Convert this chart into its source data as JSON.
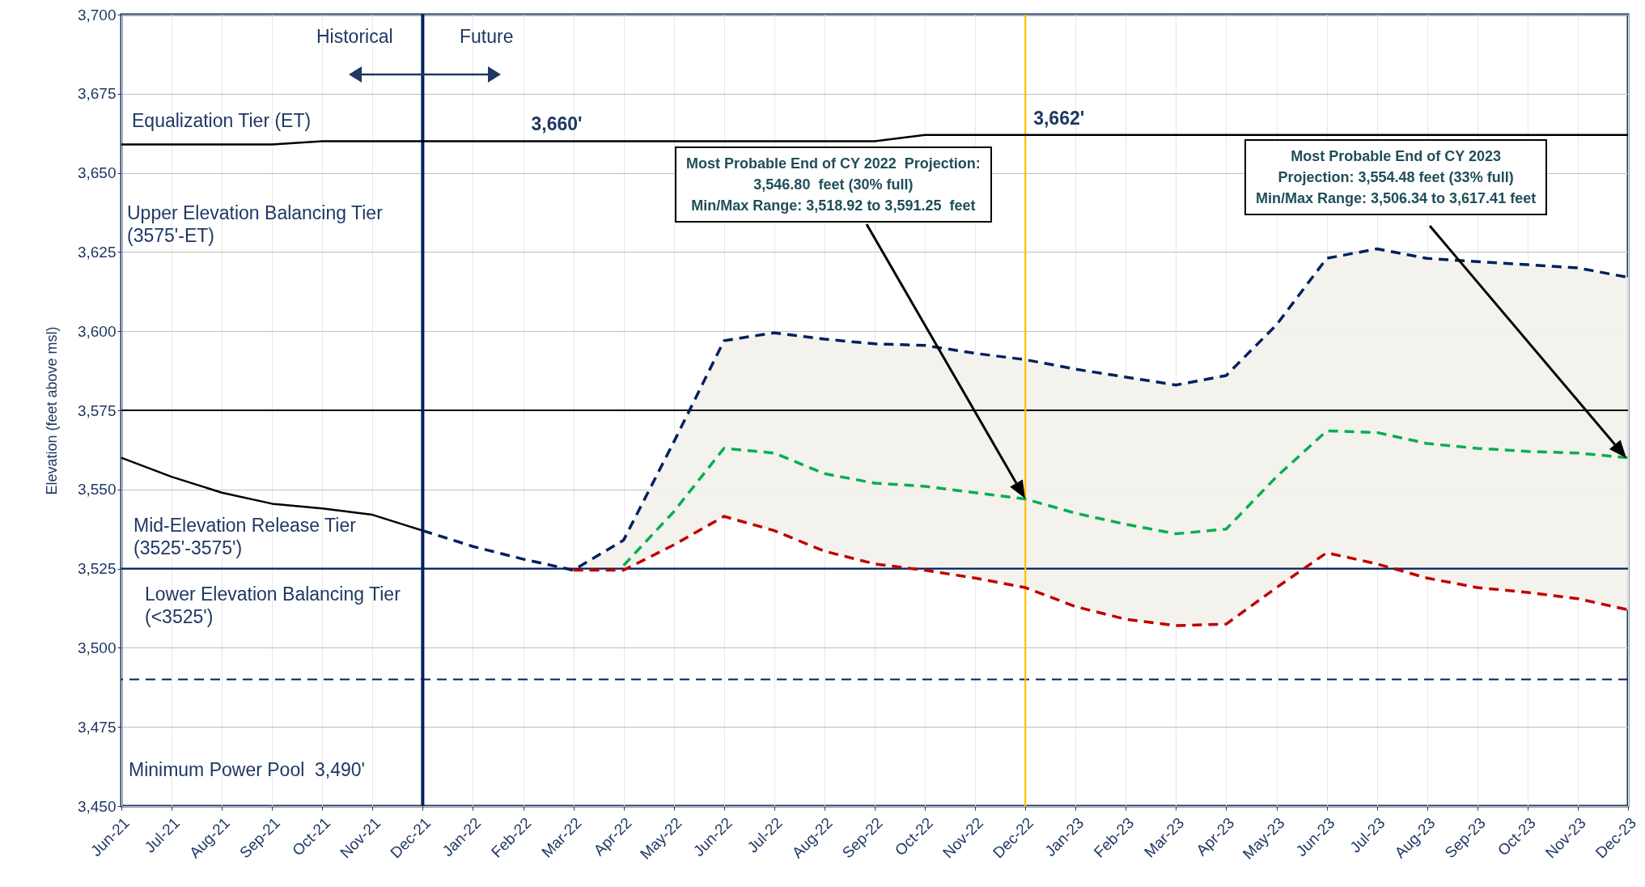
{
  "chart_data": {
    "type": "line",
    "ylabel": "Elevation (feet above msl)",
    "categories": [
      "Jun-21",
      "Jul-21",
      "Aug-21",
      "Sep-21",
      "Oct-21",
      "Nov-21",
      "Dec-21",
      "Jan-22",
      "Feb-22",
      "Mar-22",
      "Apr-22",
      "May-22",
      "Jun-22",
      "Jul-22",
      "Aug-22",
      "Sep-22",
      "Oct-22",
      "Nov-22",
      "Dec-22",
      "Jan-23",
      "Feb-23",
      "Mar-23",
      "Apr-23",
      "May-23",
      "Jun-23",
      "Jul-23",
      "Aug-23",
      "Sep-23",
      "Oct-23",
      "Nov-23",
      "Dec-23"
    ],
    "series": [
      {
        "color": "#000000",
        "line_style": "solid",
        "values": [
          3659,
          3659,
          3659,
          3659,
          3660,
          3660,
          3660,
          3660,
          3660,
          3660,
          3660,
          3660,
          3660,
          3660,
          3660,
          3660,
          3662,
          3662,
          3662,
          3662,
          3662,
          3662,
          3662,
          3662,
          3662,
          3662,
          3662,
          3662,
          3662,
          3662,
          3662
        ]
      },
      {
        "color": "#000000",
        "line_style": "solid",
        "values": [
          3560,
          3554,
          3549,
          3545.5,
          3544,
          3542,
          3537,
          null,
          null,
          null,
          null,
          null,
          null,
          null,
          null,
          null,
          null,
          null,
          null,
          null,
          null,
          null,
          null,
          null,
          null,
          null,
          null,
          null,
          null,
          null,
          null
        ]
      },
      {
        "color": "#002060",
        "line_style": "dashed",
        "values": [
          null,
          null,
          null,
          null,
          null,
          null,
          3537,
          3532,
          3528,
          3524.5,
          3534,
          3565,
          3597,
          3599.5,
          3597.5,
          3596,
          3595.5,
          3593,
          3591,
          3588,
          3585.5,
          3583,
          3586,
          3602,
          3623,
          3626,
          3623,
          3622,
          3621,
          3620,
          3617
        ]
      },
      {
        "color": "#00b050",
        "line_style": "dashed",
        "values": [
          null,
          null,
          null,
          null,
          null,
          null,
          null,
          null,
          null,
          null,
          3526,
          3543,
          3563,
          3561.5,
          3555,
          3552,
          3551,
          3549,
          3547,
          3542.5,
          3539,
          3536,
          3537.5,
          3554,
          3568.5,
          3568,
          3564.5,
          3563,
          3562,
          3561.5,
          3560
        ],
        "lower": [
          null,
          null,
          null,
          null,
          null,
          null,
          3537,
          3532,
          3528,
          3524.5,
          3524.5,
          3532.5,
          3541.5,
          3537,
          3530.5,
          3526.5,
          3524.5,
          3522,
          3519,
          3513,
          3509,
          3507,
          3507.5,
          3519,
          3530,
          3526.5,
          3522,
          3519,
          3517.5,
          3515.5,
          3512
        ],
        "upper": [
          null,
          null,
          null,
          null,
          null,
          null,
          3537,
          3532,
          3528,
          3524.5,
          3534,
          3565,
          3597,
          3599.5,
          3597.5,
          3596,
          3595.5,
          3593,
          3591,
          3588,
          3585.5,
          3583,
          3586,
          3602,
          3623,
          3626,
          3623,
          3622,
          3621,
          3620,
          3617
        ]
      },
      {
        "color": "#c00000",
        "line_style": "dashed",
        "values": [
          null,
          null,
          null,
          null,
          null,
          null,
          null,
          null,
          null,
          3524.5,
          3524.5,
          3532.5,
          3541.5,
          3537,
          3530.5,
          3526.5,
          3524.5,
          3522,
          3519,
          3513,
          3509,
          3507,
          3507.5,
          3519,
          3530,
          3526.5,
          3522,
          3519,
          3517.5,
          3515.5,
          3512
        ]
      }
    ],
    "ylim": [
      3450,
      3700
    ],
    "yticks": [
      {
        "value": 3450,
        "label": "3,450"
      },
      {
        "value": 3475,
        "label": "3,475"
      },
      {
        "value": 3500,
        "label": "3,500"
      },
      {
        "value": 3525,
        "label": "3,525"
      },
      {
        "value": 3550,
        "label": "3,550"
      },
      {
        "value": 3575,
        "label": "3,575"
      },
      {
        "value": 3600,
        "label": "3,600"
      },
      {
        "value": 3625,
        "label": "3,625"
      },
      {
        "value": 3650,
        "label": "3,650"
      },
      {
        "value": 3675,
        "label": "3,675"
      },
      {
        "value": 3700,
        "label": "3,700"
      }
    ],
    "grid": true,
    "ref_lines": [
      {
        "axis": "y",
        "value": 3575,
        "color": "#000000"
      },
      {
        "axis": "y",
        "value": 3525,
        "color": "#002060"
      },
      {
        "axis": "y",
        "value": 3490,
        "color": "#002060",
        "line_style": "dashed"
      },
      {
        "axis": "x",
        "value": "Dec-21",
        "color": "#002060"
      },
      {
        "axis": "x",
        "value": "Dec-22",
        "color": "#ffc000"
      }
    ],
    "annotations": [
      "Historical",
      "Future",
      "Equalization Tier (ET)",
      "Upper Elevation Balancing Tier\n(3575'-ET)",
      "Mid-Elevation Release Tier\n(3525'-3575')",
      "Lower Elevation Balancing Tier\n(<3525')",
      "Minimum Power Pool  3,490'",
      {
        "text": "3,660'",
        "x": "Feb-22",
        "y": 3660
      },
      {
        "text": "3,662'",
        "x": "Dec-22",
        "y": 3662
      },
      "Most Probable End of CY 2022  Projection:\n3,546.80  feet (30% full)\nMin/Max Range: 3,518.92 to 3,591.25  feet",
      "Most Probable End of CY 2023\nProjection: 3,554.48 feet (33% full)\nMin/Max Range: 3,506.34 to 3,617.41 feet"
    ]
  }
}
